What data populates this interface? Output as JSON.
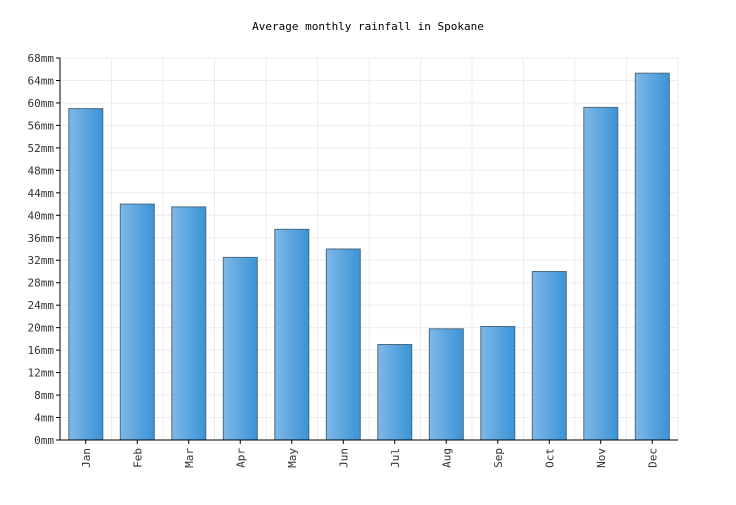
{
  "chart_data": {
    "type": "bar",
    "title": "Average monthly rainfall in Spokane",
    "xlabel": "",
    "ylabel": "",
    "categories": [
      "Jan",
      "Feb",
      "Mar",
      "Apr",
      "May",
      "Jun",
      "Jul",
      "Aug",
      "Sep",
      "Oct",
      "Nov",
      "Dec"
    ],
    "values": [
      59,
      42,
      41.5,
      32.5,
      37.5,
      34,
      17,
      19.8,
      20.2,
      30,
      59.2,
      65.3
    ],
    "unit": "mm",
    "ylim": [
      0,
      68
    ],
    "yticks": [
      "0mm",
      "4mm",
      "8mm",
      "12mm",
      "16mm",
      "20mm",
      "24mm",
      "28mm",
      "32mm",
      "36mm",
      "40mm",
      "44mm",
      "48mm",
      "52mm",
      "56mm",
      "60mm",
      "64mm",
      "68mm"
    ],
    "grid": true,
    "legend": "none",
    "colors": {
      "bar_left": "#7fb8e8",
      "bar_right": "#3a93d6",
      "bar_stroke": "#4d6a80",
      "grid": "#ececec",
      "axis": "#000000"
    }
  }
}
